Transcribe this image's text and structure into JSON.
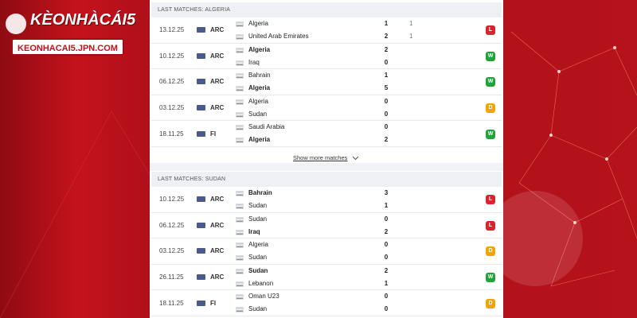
{
  "logo": {
    "title": "KÈONHÀCÁI5",
    "url": "KEONHACAI5.JPN.COM"
  },
  "sections": [
    {
      "title": "LAST MATCHES: ALGERIA",
      "more": "Show more matches",
      "matches": [
        {
          "date": "13.12.25",
          "comp": "ARC",
          "teams": [
            {
              "name": "Algeria",
              "score": 1,
              "extra": 1,
              "bold": false
            },
            {
              "name": "United Arab Emirates",
              "score": 2,
              "extra": 1,
              "bold": false
            }
          ],
          "result": {
            "label": "L",
            "color": "#d9232d"
          }
        },
        {
          "date": "10.12.25",
          "comp": "ARC",
          "teams": [
            {
              "name": "Algeria",
              "score": 2,
              "bold": true
            },
            {
              "name": "Iraq",
              "score": 0,
              "bold": false
            }
          ],
          "result": {
            "label": "W",
            "color": "#1fa33a"
          }
        },
        {
          "date": "06.12.25",
          "comp": "ARC",
          "teams": [
            {
              "name": "Bahrain",
              "score": 1,
              "bold": false
            },
            {
              "name": "Algeria",
              "score": 5,
              "bold": true
            }
          ],
          "result": {
            "label": "W",
            "color": "#1fa33a"
          }
        },
        {
          "date": "03.12.25",
          "comp": "ARC",
          "teams": [
            {
              "name": "Algeria",
              "score": 0,
              "bold": false
            },
            {
              "name": "Sudan",
              "score": 0,
              "bold": false
            }
          ],
          "result": {
            "label": "D",
            "color": "#f0a500"
          }
        },
        {
          "date": "18.11.25",
          "comp": "FI",
          "teams": [
            {
              "name": "Saudi Arabia",
              "score": 0,
              "bold": false
            },
            {
              "name": "Algeria",
              "score": 2,
              "bold": true
            }
          ],
          "result": {
            "label": "W",
            "color": "#1fa33a"
          }
        }
      ]
    },
    {
      "title": "LAST MATCHES: SUDAN",
      "matches": [
        {
          "date": "10.12.25",
          "comp": "ARC",
          "teams": [
            {
              "name": "Bahrain",
              "score": 3,
              "bold": true
            },
            {
              "name": "Sudan",
              "score": 1,
              "bold": false
            }
          ],
          "result": {
            "label": "L",
            "color": "#d9232d"
          }
        },
        {
          "date": "06.12.25",
          "comp": "ARC",
          "teams": [
            {
              "name": "Sudan",
              "score": 0,
              "bold": false
            },
            {
              "name": "Iraq",
              "score": 2,
              "bold": true
            }
          ],
          "result": {
            "label": "L",
            "color": "#d9232d"
          }
        },
        {
          "date": "03.12.25",
          "comp": "ARC",
          "teams": [
            {
              "name": "Algeria",
              "score": 0,
              "bold": false
            },
            {
              "name": "Sudan",
              "score": 0,
              "bold": false
            }
          ],
          "result": {
            "label": "D",
            "color": "#f0a500"
          }
        },
        {
          "date": "26.11.25",
          "comp": "ARC",
          "teams": [
            {
              "name": "Sudan",
              "score": 2,
              "bold": true
            },
            {
              "name": "Lebanon",
              "score": 1,
              "bold": false
            }
          ],
          "result": {
            "label": "W",
            "color": "#1fa33a"
          }
        },
        {
          "date": "18.11.25",
          "comp": "FI",
          "teams": [
            {
              "name": "Oman U23",
              "score": 0,
              "bold": false
            },
            {
              "name": "Sudan",
              "score": 0,
              "bold": false
            }
          ],
          "result": {
            "label": "D",
            "color": "#f0a500"
          }
        }
      ]
    }
  ]
}
